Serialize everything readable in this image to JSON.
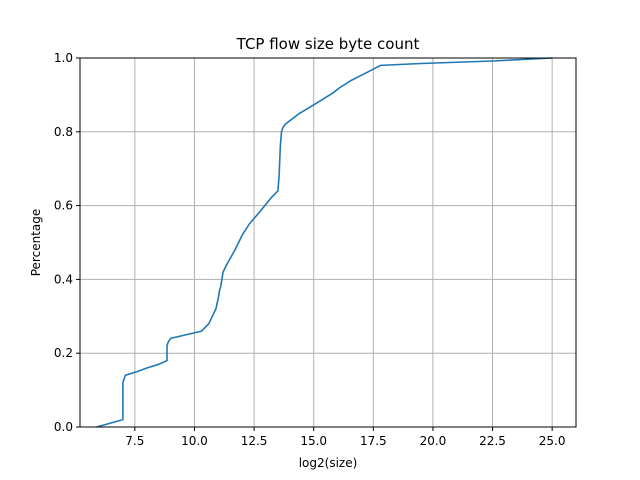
{
  "chart_data": {
    "type": "line",
    "title": "TCP flow size byte count",
    "xlabel": "log2(size)",
    "ylabel": "Percentage",
    "xlim": [
      5.2,
      26.0
    ],
    "ylim": [
      0.0,
      1.0
    ],
    "xticks": [
      7.5,
      10.0,
      12.5,
      15.0,
      17.5,
      20.0,
      22.5,
      25.0
    ],
    "xtick_labels": [
      "7.5",
      "10.0",
      "12.5",
      "15.0",
      "17.5",
      "20.0",
      "22.5",
      "25.0"
    ],
    "yticks": [
      0.0,
      0.2,
      0.4,
      0.6,
      0.8,
      1.0
    ],
    "ytick_labels": [
      "0.0",
      "0.2",
      "0.4",
      "0.6",
      "0.8",
      "1.0"
    ],
    "grid": true,
    "series": [
      {
        "color": "#1f77b4",
        "x": [
          5.9,
          7.0,
          7.0,
          7.05,
          7.1,
          7.6,
          8.0,
          8.5,
          8.85,
          8.85,
          8.9,
          9.0,
          10.3,
          10.6,
          10.9,
          11.0,
          11.05,
          11.1,
          11.2,
          11.35,
          11.7,
          11.85,
          12.0,
          12.3,
          12.7,
          13.2,
          13.5,
          13.55,
          13.6,
          13.65,
          13.7,
          13.8,
          14.0,
          14.4,
          14.8,
          15.3,
          15.8,
          16.1,
          16.6,
          17.2,
          17.8,
          19.5,
          22.5,
          25.0
        ],
        "y": [
          0.0,
          0.02,
          0.12,
          0.13,
          0.14,
          0.15,
          0.16,
          0.17,
          0.18,
          0.22,
          0.23,
          0.24,
          0.26,
          0.28,
          0.32,
          0.35,
          0.37,
          0.38,
          0.42,
          0.44,
          0.48,
          0.5,
          0.52,
          0.55,
          0.58,
          0.62,
          0.64,
          0.68,
          0.76,
          0.8,
          0.81,
          0.82,
          0.83,
          0.85,
          0.865,
          0.885,
          0.905,
          0.92,
          0.94,
          0.96,
          0.98,
          0.985,
          0.992,
          1.0
        ]
      }
    ]
  }
}
